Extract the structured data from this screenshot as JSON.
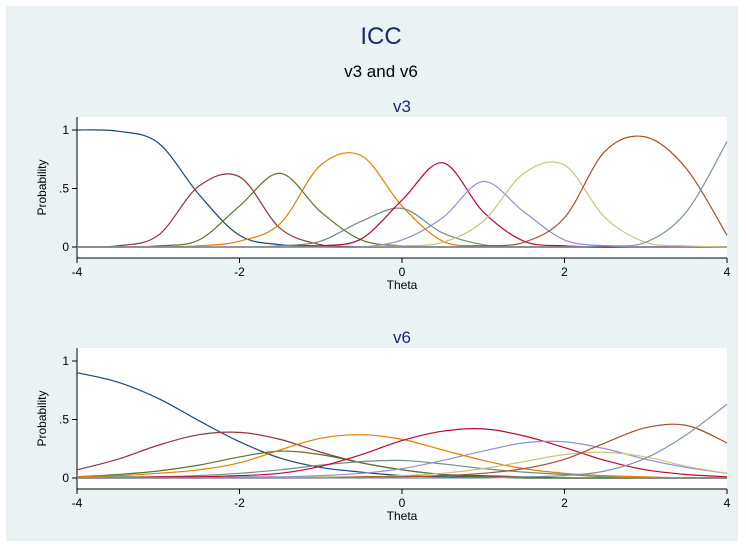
{
  "title": "ICC",
  "subtitle": "v3 and v6",
  "colors": {
    "background": "#eaf2f3",
    "plot_background": "#ffffff",
    "title_text": "#1a2a6c",
    "series_palette": [
      "#1a476f",
      "#90353b",
      "#55752f",
      "#e37e00",
      "#6e8e84",
      "#c10534",
      "#938dd2",
      "#cac27e",
      "#a0522d",
      "#7b92a8"
    ]
  },
  "chart_data": [
    {
      "type": "line",
      "title": "v3",
      "xlabel": "Theta",
      "ylabel": "Probability",
      "xlim": [
        -4,
        4
      ],
      "ylim": [
        0,
        1
      ],
      "xticks": [
        -4,
        -2,
        0,
        2,
        4
      ],
      "xtick_labels": [
        "-4",
        "-2",
        "0",
        "2",
        "4"
      ],
      "yticks": [
        0,
        0.5,
        1
      ],
      "ytick_labels": [
        "0",
        ".5",
        "1"
      ],
      "grid": false,
      "x": [
        -4,
        -3.5,
        -3,
        -2.5,
        -2,
        -1.5,
        -1,
        -0.5,
        0,
        0.5,
        1,
        1.5,
        2,
        2.5,
        3,
        3.5,
        4
      ],
      "series": [
        {
          "color": "#1a476f",
          "values": [
            1.0,
            0.99,
            0.89,
            0.45,
            0.1,
            0.02,
            0.01,
            0.0,
            0.0,
            0.0,
            0.0,
            0.0,
            0.0,
            0.0,
            0.0,
            0.0,
            0.0
          ]
        },
        {
          "color": "#90353b",
          "values": [
            0.0,
            0.01,
            0.1,
            0.52,
            0.6,
            0.16,
            0.02,
            0.0,
            0.0,
            0.0,
            0.0,
            0.0,
            0.0,
            0.0,
            0.0,
            0.0,
            0.0
          ]
        },
        {
          "color": "#55752f",
          "values": [
            0.0,
            0.0,
            0.01,
            0.06,
            0.35,
            0.63,
            0.3,
            0.06,
            0.01,
            0.0,
            0.0,
            0.0,
            0.0,
            0.0,
            0.0,
            0.0,
            0.0
          ]
        },
        {
          "color": "#e37e00",
          "values": [
            0.0,
            0.0,
            0.0,
            0.01,
            0.05,
            0.2,
            0.7,
            0.78,
            0.35,
            0.05,
            0.01,
            0.0,
            0.0,
            0.0,
            0.0,
            0.0,
            0.0
          ]
        },
        {
          "color": "#6e8e84",
          "values": [
            0.0,
            0.0,
            0.0,
            0.0,
            0.0,
            0.01,
            0.05,
            0.22,
            0.33,
            0.12,
            0.02,
            0.0,
            0.0,
            0.0,
            0.0,
            0.0,
            0.0
          ]
        },
        {
          "color": "#c10534",
          "values": [
            0.0,
            0.0,
            0.0,
            0.0,
            0.0,
            0.0,
            0.01,
            0.07,
            0.4,
            0.72,
            0.3,
            0.05,
            0.01,
            0.0,
            0.0,
            0.0,
            0.0
          ]
        },
        {
          "color": "#938dd2",
          "values": [
            0.0,
            0.0,
            0.0,
            0.0,
            0.0,
            0.0,
            0.0,
            0.0,
            0.06,
            0.25,
            0.56,
            0.3,
            0.06,
            0.01,
            0.0,
            0.0,
            0.0
          ]
        },
        {
          "color": "#cac27e",
          "values": [
            0.0,
            0.0,
            0.0,
            0.0,
            0.0,
            0.0,
            0.0,
            0.0,
            0.01,
            0.04,
            0.22,
            0.63,
            0.7,
            0.25,
            0.04,
            0.01,
            0.0
          ]
        },
        {
          "color": "#a0522d",
          "values": [
            0.0,
            0.0,
            0.0,
            0.0,
            0.0,
            0.0,
            0.0,
            0.0,
            0.0,
            0.0,
            0.01,
            0.04,
            0.25,
            0.82,
            0.94,
            0.67,
            0.1
          ]
        },
        {
          "color": "#7b92a8",
          "values": [
            0.0,
            0.0,
            0.0,
            0.0,
            0.0,
            0.0,
            0.0,
            0.0,
            0.0,
            0.0,
            0.0,
            0.0,
            0.0,
            0.01,
            0.04,
            0.3,
            0.9
          ]
        }
      ]
    },
    {
      "type": "line",
      "title": "v6",
      "xlabel": "Theta",
      "ylabel": "Probability",
      "xlim": [
        -4,
        4
      ],
      "ylim": [
        0,
        1
      ],
      "xticks": [
        -4,
        -2,
        0,
        2,
        4
      ],
      "xtick_labels": [
        "-4",
        "-2",
        "0",
        "2",
        "4"
      ],
      "yticks": [
        0,
        0.5,
        1
      ],
      "ytick_labels": [
        "0",
        ".5",
        "1"
      ],
      "grid": false,
      "x": [
        -4,
        -3.5,
        -3,
        -2.5,
        -2,
        -1.5,
        -1,
        -0.5,
        0,
        0.5,
        1,
        1.5,
        2,
        2.5,
        3,
        3.5,
        4
      ],
      "series": [
        {
          "color": "#1a476f",
          "values": [
            0.9,
            0.82,
            0.68,
            0.49,
            0.31,
            0.17,
            0.09,
            0.05,
            0.02,
            0.01,
            0.01,
            0.0,
            0.0,
            0.0,
            0.0,
            0.0,
            0.0
          ]
        },
        {
          "color": "#90353b",
          "values": [
            0.07,
            0.16,
            0.28,
            0.37,
            0.39,
            0.33,
            0.22,
            0.13,
            0.07,
            0.03,
            0.02,
            0.01,
            0.0,
            0.0,
            0.0,
            0.0,
            0.0
          ]
        },
        {
          "color": "#55752f",
          "values": [
            0.01,
            0.03,
            0.06,
            0.11,
            0.18,
            0.23,
            0.2,
            0.13,
            0.07,
            0.03,
            0.01,
            0.0,
            0.0,
            0.0,
            0.0,
            0.0,
            0.0
          ]
        },
        {
          "color": "#e37e00",
          "values": [
            0.01,
            0.02,
            0.04,
            0.07,
            0.13,
            0.24,
            0.34,
            0.37,
            0.33,
            0.24,
            0.15,
            0.08,
            0.04,
            0.02,
            0.01,
            0.0,
            0.0
          ]
        },
        {
          "color": "#6e8e84",
          "values": [
            0.0,
            0.01,
            0.01,
            0.02,
            0.04,
            0.07,
            0.11,
            0.14,
            0.15,
            0.12,
            0.08,
            0.05,
            0.03,
            0.01,
            0.0,
            0.0,
            0.0
          ]
        },
        {
          "color": "#c10534",
          "values": [
            0.0,
            0.0,
            0.01,
            0.01,
            0.02,
            0.04,
            0.1,
            0.2,
            0.32,
            0.4,
            0.42,
            0.36,
            0.26,
            0.15,
            0.07,
            0.03,
            0.01
          ]
        },
        {
          "color": "#938dd2",
          "values": [
            0.0,
            0.0,
            0.0,
            0.0,
            0.01,
            0.01,
            0.02,
            0.04,
            0.08,
            0.15,
            0.23,
            0.3,
            0.31,
            0.25,
            0.16,
            0.09,
            0.04
          ]
        },
        {
          "color": "#cac27e",
          "values": [
            0.0,
            0.0,
            0.0,
            0.0,
            0.0,
            0.0,
            0.01,
            0.01,
            0.02,
            0.04,
            0.08,
            0.14,
            0.2,
            0.22,
            0.18,
            0.1,
            0.04
          ]
        },
        {
          "color": "#a0522d",
          "values": [
            0.0,
            0.0,
            0.0,
            0.0,
            0.0,
            0.0,
            0.0,
            0.01,
            0.01,
            0.02,
            0.04,
            0.08,
            0.16,
            0.3,
            0.43,
            0.45,
            0.3
          ]
        },
        {
          "color": "#7b92a8",
          "values": [
            0.0,
            0.0,
            0.0,
            0.0,
            0.0,
            0.0,
            0.0,
            0.0,
            0.0,
            0.0,
            0.0,
            0.01,
            0.02,
            0.06,
            0.17,
            0.37,
            0.63
          ]
        }
      ]
    }
  ]
}
